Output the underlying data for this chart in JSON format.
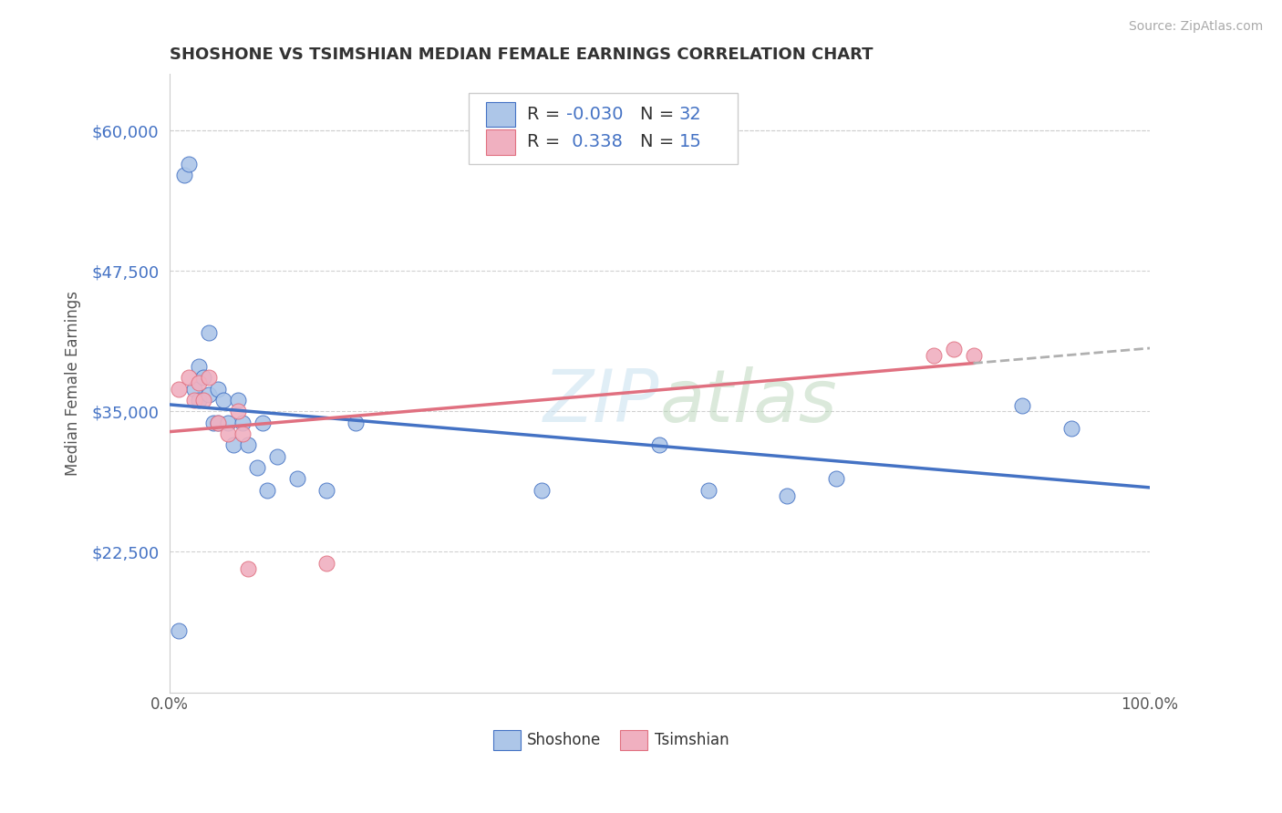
{
  "title": "SHOSHONE VS TSIMSHIAN MEDIAN FEMALE EARNINGS CORRELATION CHART",
  "source_text": "Source: ZipAtlas.com",
  "ylabel": "Median Female Earnings",
  "xlim": [
    0.0,
    1.0
  ],
  "ylim": [
    10000,
    65000
  ],
  "yticks": [
    22500,
    35000,
    47500,
    60000
  ],
  "ytick_labels": [
    "$22,500",
    "$35,000",
    "$47,500",
    "$60,000"
  ],
  "xtick_labels": [
    "0.0%",
    "100.0%"
  ],
  "background_color": "#ffffff",
  "grid_color": "#d0d0d0",
  "shoshone_color": "#adc6e8",
  "tsimshian_color": "#f0b0c0",
  "shoshone_line_color": "#4472c4",
  "tsimshian_line_color": "#e07080",
  "R_shoshone": -0.03,
  "N_shoshone": 32,
  "R_tsimshian": 0.338,
  "N_tsimshian": 15,
  "shoshone_x": [
    0.01,
    0.015,
    0.02,
    0.025,
    0.03,
    0.03,
    0.035,
    0.04,
    0.04,
    0.045,
    0.05,
    0.05,
    0.055,
    0.06,
    0.065,
    0.07,
    0.075,
    0.08,
    0.09,
    0.095,
    0.1,
    0.11,
    0.13,
    0.16,
    0.19,
    0.38,
    0.5,
    0.55,
    0.63,
    0.68,
    0.87,
    0.92
  ],
  "shoshone_y": [
    15500,
    56000,
    57000,
    37000,
    39000,
    36000,
    38000,
    42000,
    36500,
    34000,
    37000,
    34000,
    36000,
    34000,
    32000,
    36000,
    34000,
    32000,
    30000,
    34000,
    28000,
    31000,
    29000,
    28000,
    34000,
    28000,
    32000,
    28000,
    27500,
    29000,
    35500,
    33500
  ],
  "tsimshian_x": [
    0.01,
    0.02,
    0.025,
    0.03,
    0.035,
    0.04,
    0.05,
    0.06,
    0.07,
    0.075,
    0.08,
    0.16,
    0.78,
    0.8,
    0.82
  ],
  "tsimshian_y": [
    37000,
    38000,
    36000,
    37500,
    36000,
    38000,
    34000,
    33000,
    35000,
    33000,
    21000,
    21500,
    40000,
    40500,
    40000
  ]
}
